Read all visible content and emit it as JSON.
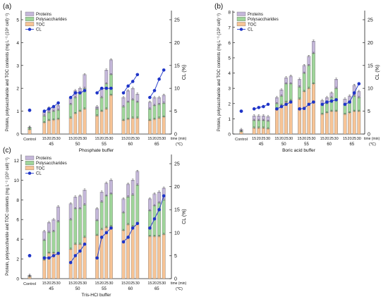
{
  "figure": {
    "label_note": "Three-panel stacked bar + line chart"
  },
  "chart_data": [
    {
      "type": "bar",
      "panel": "(a)",
      "xlabel": "Phosphate buffer",
      "ylabel": "Protein, polysaccharide and TOC contents (mg L⁻¹ (10⁸ cell)⁻¹)",
      "y2label": "CL (%)",
      "time_label": "time (min)",
      "temp_unit": "(℃)",
      "ylim": [
        0,
        5.4
      ],
      "y2lim": [
        0,
        27
      ],
      "yticks": [
        0,
        1,
        2,
        3,
        4,
        5
      ],
      "y2ticks": [
        0,
        5,
        10,
        15,
        20,
        25
      ],
      "legend": [
        "Proteins",
        "Polysaccharides",
        "TOC",
        "CL"
      ],
      "legend_position": "top-left",
      "control_label": "Control",
      "groups": [
        "45",
        "50",
        "55",
        "60",
        "65"
      ],
      "times": [
        "15",
        "20",
        "25",
        "30"
      ],
      "control": {
        "toc": 0.2,
        "poly": 0.08,
        "prot": 0.02,
        "cl": 5.2
      },
      "toc": [
        [
          0.5,
          0.6,
          0.62,
          0.65
        ],
        [
          0.7,
          0.9,
          1.0,
          1.1
        ],
        [
          0.8,
          1.0,
          1.1,
          1.7
        ],
        [
          0.6,
          0.65,
          0.7,
          0.7
        ],
        [
          0.6,
          0.65,
          0.7,
          0.75
        ]
      ],
      "poly": [
        [
          0.3,
          0.35,
          0.38,
          0.4
        ],
        [
          0.6,
          0.7,
          0.8,
          0.9
        ],
        [
          0.3,
          0.6,
          1.1,
          0.9
        ],
        [
          0.6,
          0.75,
          0.8,
          0.7
        ],
        [
          0.5,
          0.6,
          0.6,
          0.6
        ]
      ],
      "prot": [
        [
          0.15,
          0.2,
          0.2,
          0.2
        ],
        [
          0.3,
          0.3,
          0.2,
          0.6
        ],
        [
          0.1,
          0.4,
          0.6,
          0.65
        ],
        [
          0.4,
          0.5,
          0.5,
          0.35
        ],
        [
          0.3,
          0.35,
          0.3,
          0.35
        ]
      ],
      "cl": [
        [
          5.0,
          5.5,
          6.0,
          6.8
        ],
        [
          8.0,
          9.0,
          9.0,
          9.5
        ],
        [
          9.0,
          10.0,
          10.0,
          10.0
        ],
        [
          9.0,
          10.5,
          11.5,
          13.0
        ],
        [
          8.0,
          9.5,
          12.0,
          14.0
        ]
      ]
    },
    {
      "type": "bar",
      "panel": "(b)",
      "xlabel": "Boric acid buffer",
      "ylabel": "Protein, polysaccharide and TOC contents (mg L⁻¹ (10⁸ cell)⁻¹)",
      "y2label": "CL (%)",
      "time_label": "time (min)",
      "temp_unit": "(℃)",
      "ylim": [
        0,
        8.1
      ],
      "y2lim": [
        0,
        27
      ],
      "yticks": [
        0,
        1,
        2,
        3,
        4,
        5,
        6,
        7,
        8
      ],
      "y2ticks": [
        0,
        5,
        10,
        15,
        20,
        25
      ],
      "legend": [
        "Proteins",
        "Polysaccharides",
        "TOC",
        "CL"
      ],
      "legend_position": "top-left",
      "control_label": "Control",
      "groups": [
        "45",
        "50",
        "55",
        "60",
        "65"
      ],
      "times": [
        "15",
        "20",
        "25",
        "30"
      ],
      "control": {
        "toc": 0.15,
        "poly": 0.05,
        "prot": 0.1,
        "cl": 5.0
      },
      "toc": [
        [
          0.4,
          0.4,
          0.4,
          0.35
        ],
        [
          1.6,
          1.9,
          2.1,
          2.2
        ],
        [
          2.3,
          2.8,
          3.0,
          3.3
        ],
        [
          1.3,
          1.4,
          1.5,
          1.5
        ],
        [
          1.3,
          1.4,
          1.5,
          1.5
        ]
      ],
      "poly": [
        [
          0.5,
          0.5,
          0.5,
          0.5
        ],
        [
          0.4,
          0.6,
          1.2,
          1.1
        ],
        [
          0.8,
          1.2,
          1.5,
          2.0
        ],
        [
          0.6,
          0.6,
          0.9,
          1.5
        ],
        [
          0.6,
          0.7,
          1.0,
          0.9
        ]
      ],
      "prot": [
        [
          0.3,
          0.3,
          0.3,
          0.3
        ],
        [
          0.4,
          0.4,
          0.4,
          0.5
        ],
        [
          0.5,
          0.5,
          0.6,
          0.8
        ],
        [
          0.3,
          0.4,
          0.3,
          0.6
        ],
        [
          0.4,
          0.4,
          0.7,
          0.4
        ]
      ],
      "cl": [
        [
          5.5,
          5.8,
          6.0,
          6.5
        ],
        [
          5.5,
          6.0,
          6.5,
          7.0
        ],
        [
          5.5,
          5.6,
          6.5,
          7.0
        ],
        [
          6.5,
          7.0,
          7.2,
          7.5
        ],
        [
          6.5,
          7.0,
          9.0,
          11.0
        ]
      ]
    },
    {
      "type": "bar",
      "panel": "(c)",
      "xlabel": "Tris-HCl buffer",
      "ylabel": "Protein, polysaccharide and TOC contents (mg L⁻¹ (10⁸ cell)⁻¹)",
      "y2label": "CL (%)",
      "time_label": "time (min)",
      "temp_unit": "(℃)",
      "ylim": [
        0,
        12.6
      ],
      "y2lim": [
        0,
        27
      ],
      "yticks": [
        0,
        2,
        4,
        6,
        8,
        10,
        12
      ],
      "y2ticks": [
        0,
        5,
        10,
        15,
        20,
        25
      ],
      "legend": [
        "Proteins",
        "Polysaccharides",
        "TOC",
        "CL"
      ],
      "legend_position": "top-left",
      "control_label": "Control",
      "groups": [
        "45",
        "50",
        "55",
        "60",
        "65"
      ],
      "times": [
        "15",
        "20",
        "25",
        "30"
      ],
      "control": {
        "toc": 0.2,
        "poly": 0.05,
        "prot": 0.1,
        "cl": 5.0
      },
      "toc": [
        [
          1.9,
          2.6,
          2.6,
          2.6
        ],
        [
          3.0,
          3.5,
          3.5,
          4.2
        ],
        [
          4.4,
          5.0,
          5.2,
          5.3
        ],
        [
          4.9,
          5.5,
          5.3,
          5.6
        ],
        [
          4.3,
          4.3,
          4.3,
          4.5
        ]
      ],
      "poly": [
        [
          2.0,
          2.1,
          2.2,
          3.2
        ],
        [
          3.0,
          3.6,
          3.6,
          3.3
        ],
        [
          1.5,
          2.8,
          3.2,
          3.3
        ],
        [
          1.8,
          2.8,
          3.2,
          3.9
        ],
        [
          2.6,
          3.1,
          3.4,
          3.5
        ]
      ],
      "prot": [
        [
          0.9,
          1.0,
          1.2,
          1.5
        ],
        [
          1.6,
          1.2,
          1.3,
          1.5
        ],
        [
          1.2,
          1.0,
          1.3,
          1.4
        ],
        [
          1.4,
          1.3,
          1.5,
          1.4
        ],
        [
          1.2,
          1.2,
          1.1,
          1.2
        ]
      ],
      "cl": [
        [
          4.5,
          4.5,
          5.0,
          5.5
        ],
        [
          3.5,
          5.0,
          6.0,
          7.5
        ],
        [
          4.5,
          9.0,
          10.0,
          11.0
        ],
        [
          8.0,
          9.0,
          11.0,
          12.0
        ],
        [
          11.0,
          13.0,
          15.0,
          18.0
        ]
      ]
    }
  ],
  "colors": {
    "toc": "#f7c496",
    "poly": "#9fd59a",
    "prot": "#c4b7d9",
    "cl": "#1f35c8",
    "axis": "#222222"
  }
}
